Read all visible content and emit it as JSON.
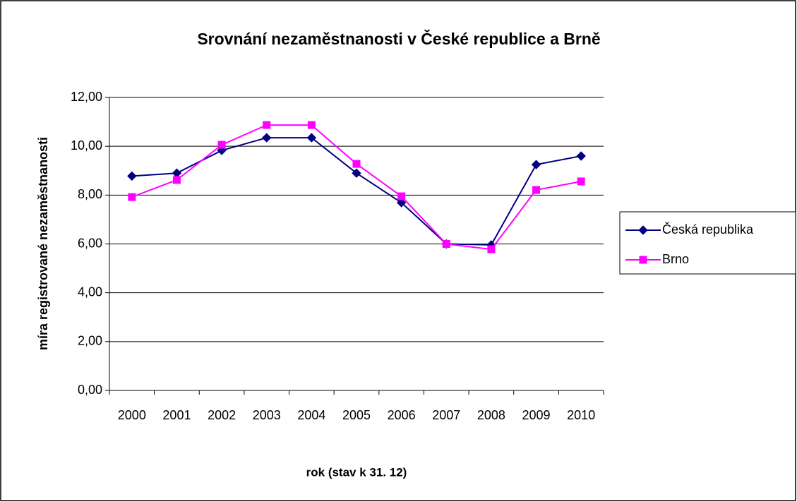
{
  "chart_data": {
    "type": "line",
    "title": "Srovnání nezaměstnanosti v České republice a Brně",
    "x_label": "rok (stav k 31. 12)",
    "y_label": "míra registrované nezaměstnanosti",
    "categories": [
      "2000",
      "2001",
      "2002",
      "2003",
      "2004",
      "2005",
      "2006",
      "2007",
      "2008",
      "2009",
      "2010"
    ],
    "series": [
      {
        "name": "Česká republika",
        "color": "#000080",
        "marker": "diamond",
        "values": [
          8.78,
          8.9,
          9.83,
          10.35,
          10.35,
          8.9,
          7.69,
          6.0,
          5.96,
          9.25,
          9.6
        ]
      },
      {
        "name": "Brno",
        "color": "#ff00ff",
        "marker": "square",
        "values": [
          7.92,
          8.62,
          10.06,
          10.87,
          10.87,
          9.28,
          7.95,
          6.0,
          5.78,
          8.21,
          8.56
        ]
      }
    ],
    "ylim": [
      0,
      12
    ],
    "yticks": [
      {
        "value": 0,
        "label": "0,00"
      },
      {
        "value": 2,
        "label": "2,00"
      },
      {
        "value": 4,
        "label": "4,00"
      },
      {
        "value": 6,
        "label": "6,00"
      },
      {
        "value": 8,
        "label": "8,00"
      },
      {
        "value": 10,
        "label": "10,00"
      },
      {
        "value": 12,
        "label": "12,00"
      }
    ],
    "grid": true,
    "legend": "right"
  }
}
